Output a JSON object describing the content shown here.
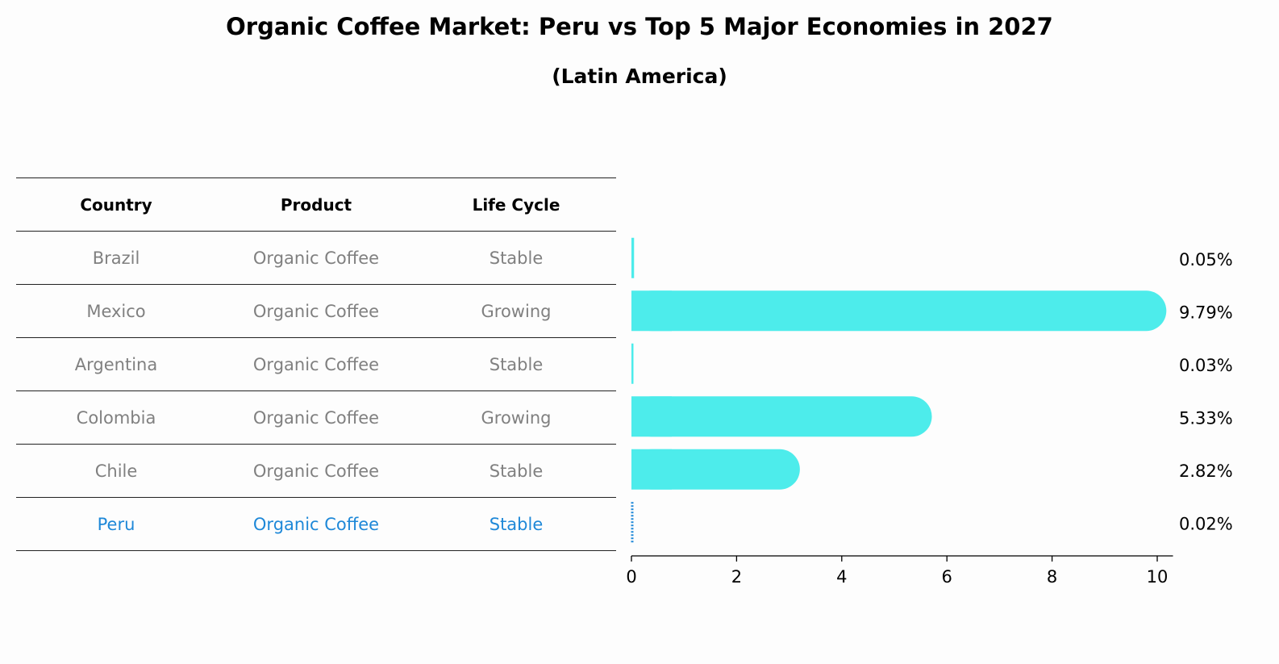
{
  "title": "Organic Coffee Market: Peru vs Top 5 Major Economies in 2027",
  "subtitle": "(Latin America)",
  "table": {
    "headers": [
      "Country",
      "Product",
      "Life Cycle"
    ],
    "rows": [
      {
        "country": "Brazil",
        "product": "Organic Coffee",
        "life_cycle": "Stable"
      },
      {
        "country": "Mexico",
        "product": "Organic Coffee",
        "life_cycle": "Growing"
      },
      {
        "country": "Argentina",
        "product": "Organic Coffee",
        "life_cycle": "Stable"
      },
      {
        "country": "Colombia",
        "product": "Organic Coffee",
        "life_cycle": "Growing"
      },
      {
        "country": "Chile",
        "product": "Organic Coffee",
        "life_cycle": "Stable"
      },
      {
        "country": "Peru",
        "product": "Organic Coffee",
        "life_cycle": "Stable"
      }
    ]
  },
  "chart_data": {
    "type": "bar",
    "orientation": "horizontal",
    "title": "Organic Coffee Market: Peru vs Top 5 Major Economies in 2027",
    "subtitle": "(Latin America)",
    "categories": [
      "Brazil",
      "Mexico",
      "Argentina",
      "Colombia",
      "Chile",
      "Peru"
    ],
    "values": [
      0.05,
      9.79,
      0.03,
      5.33,
      2.82,
      0.02
    ],
    "value_labels": [
      "0.05%",
      "9.79%",
      "0.03%",
      "5.33%",
      "2.82%",
      "0.02%"
    ],
    "highlight": "Peru",
    "xlim": [
      0,
      10.3
    ],
    "xticks": [
      0,
      2,
      4,
      6,
      8,
      10
    ],
    "xlabel": "",
    "ylabel": "",
    "grid": false,
    "colors": {
      "bar": "#4deceb",
      "highlight": "#1e88d8",
      "text_muted": "#808080"
    }
  }
}
